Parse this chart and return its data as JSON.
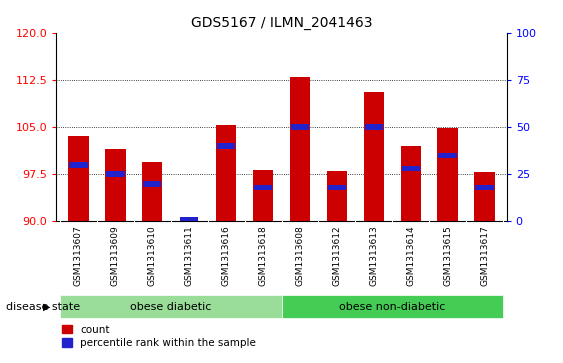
{
  "title": "GDS5167 / ILMN_2041463",
  "samples": [
    "GSM1313607",
    "GSM1313609",
    "GSM1313610",
    "GSM1313611",
    "GSM1313616",
    "GSM1313618",
    "GSM1313608",
    "GSM1313612",
    "GSM1313613",
    "GSM1313614",
    "GSM1313615",
    "GSM1313617"
  ],
  "count_values": [
    103.5,
    101.5,
    99.5,
    90.0,
    105.3,
    98.2,
    113.0,
    98.0,
    110.5,
    102.0,
    104.8,
    97.8
  ],
  "percentile_values": [
    30,
    25,
    20,
    1,
    40,
    18,
    50,
    18,
    50,
    28,
    35,
    18
  ],
  "ymin": 90,
  "ymax": 120,
  "yticks": [
    90,
    97.5,
    105,
    112.5,
    120
  ],
  "right_yticks": [
    0,
    25,
    50,
    75,
    100
  ],
  "bar_color": "#cc0000",
  "blue_color": "#2222cc",
  "group_labels": [
    "obese diabetic",
    "obese non-diabetic"
  ],
  "group_starts": [
    0,
    6
  ],
  "group_ends": [
    6,
    12
  ],
  "group_colors": [
    "#99dd99",
    "#44cc55"
  ],
  "disease_state_label": "disease state",
  "legend_count": "count",
  "legend_pct": "percentile rank within the sample",
  "bar_width": 0.55,
  "tick_bg_color": "#cccccc"
}
